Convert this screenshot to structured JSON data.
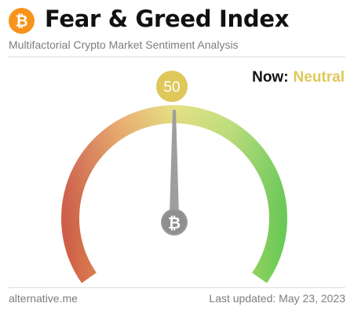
{
  "header": {
    "title": "Fear & Greed Index",
    "subtitle": "Multifactorial Crypto Market Sentiment Analysis",
    "logo_icon": "bitcoin-icon"
  },
  "status": {
    "now_label": "Now:",
    "classification": "Neutral",
    "classification_color": "#dfc85a"
  },
  "gauge": {
    "value": 50,
    "value_text": "50",
    "min": 0,
    "max": 100,
    "badge_color": "#dfc85a",
    "needle_color": "#9e9e9e",
    "hub_icon": "bitcoin-icon",
    "colors": {
      "extreme_fear": "#d9624a",
      "fear": "#e8a25a",
      "neutral": "#dfd96a",
      "greed": "#b7dc6a",
      "extreme_greed": "#6fd45a"
    }
  },
  "footer": {
    "source": "alternative.me",
    "updated": "Last updated: May 23, 2023"
  },
  "colors": {
    "brand_orange": "#f7931a"
  }
}
